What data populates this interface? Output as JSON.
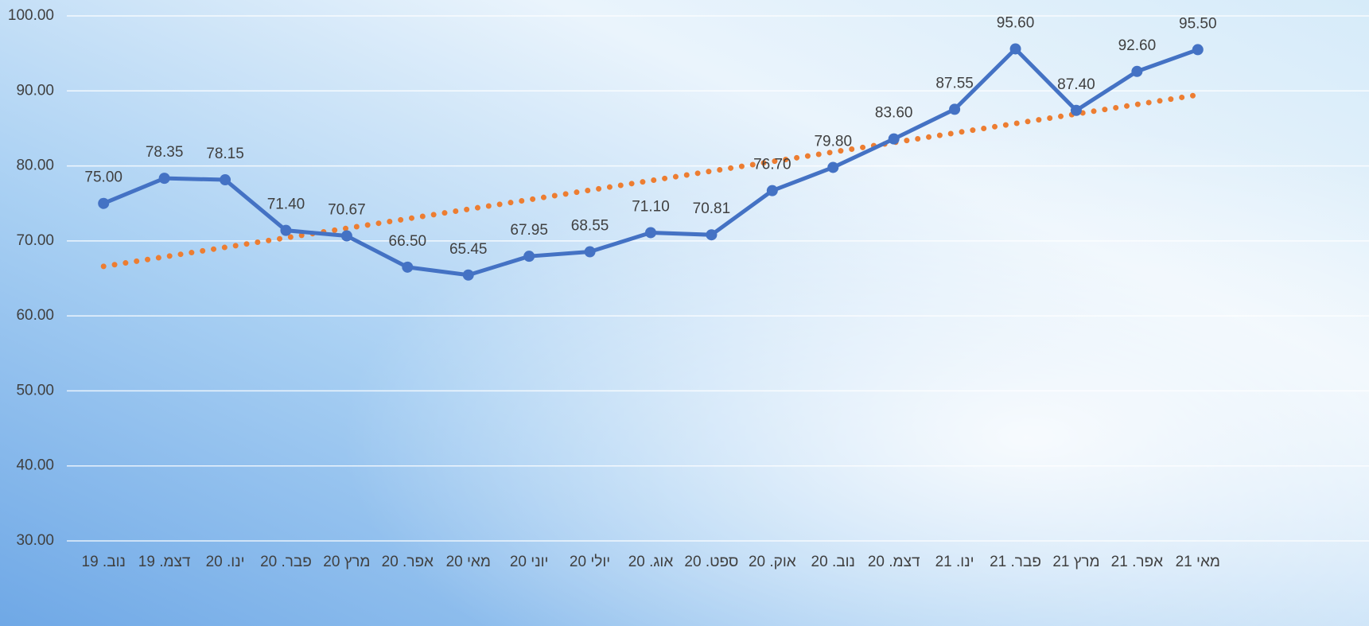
{
  "chart_data": {
    "type": "line",
    "categories": [
      "נוב. 19",
      "דצמ. 19",
      "ינו. 20",
      "פבר. 20",
      "מרץ 20",
      "אפר. 20",
      "מאי 20",
      "יוני 20",
      "יולי 20",
      "אוג. 20",
      "ספט. 20",
      "אוק. 20",
      "נוב. 20",
      "דצמ. 20",
      "ינו. 21",
      "פבר. 21",
      "מרץ 21",
      "אפר. 21",
      "מאי 21"
    ],
    "series": [
      {
        "color": "#4472c4",
        "values": [
          75.0,
          78.35,
          78.15,
          71.4,
          70.67,
          66.5,
          65.45,
          67.95,
          68.55,
          71.1,
          70.81,
          76.7,
          79.8,
          83.6,
          87.55,
          95.6,
          87.4,
          92.6,
          95.5
        ],
        "value_labels": [
          "75.00",
          "78.35",
          "78.15",
          "71.40",
          "70.67",
          "66.50",
          "65.45",
          "67.95",
          "68.55",
          "71.10",
          "70.81",
          "76.70",
          "79.80",
          "83.60",
          "87.55",
          "95.60",
          "87.40",
          "92.60",
          "95.50"
        ]
      }
    ],
    "trendline": {
      "type": "linear",
      "color": "#ed7d31",
      "style": "dotted"
    },
    "ylim": [
      30,
      100
    ],
    "yticks": [
      {
        "value": 30,
        "label": "30.00"
      },
      {
        "value": 40,
        "label": "40.00"
      },
      {
        "value": 50,
        "label": "50.00"
      },
      {
        "value": 60,
        "label": "60.00"
      },
      {
        "value": 70,
        "label": "70.00"
      },
      {
        "value": 80,
        "label": "80.00"
      },
      {
        "value": 90,
        "label": "90.00"
      },
      {
        "value": 100,
        "label": "100.00"
      }
    ],
    "grid": true
  }
}
